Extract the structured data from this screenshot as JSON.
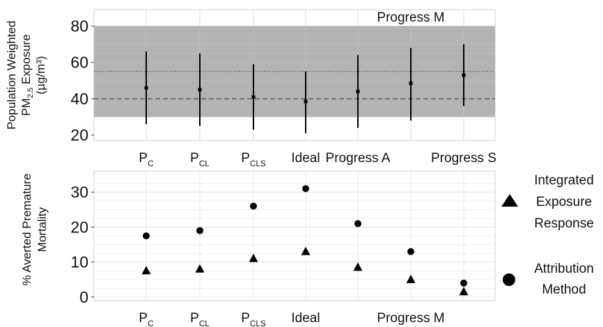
{
  "chart_data": [
    {
      "type": "scatter",
      "ylabel_lines": [
        "Population Weighted",
        "PM",
        "2.5",
        " Exposure",
        "(µg/m³)"
      ],
      "ylim": [
        17,
        89
      ],
      "yticks": [
        20,
        40,
        60,
        80
      ],
      "band": [
        30,
        80
      ],
      "ref_lines": [
        {
          "y": 40,
          "style": "dashed"
        },
        {
          "y": 55,
          "style": "dotted"
        }
      ],
      "categories": [
        {
          "main": "P",
          "sub": "C"
        },
        {
          "main": "P",
          "sub": "CL"
        },
        {
          "main": "P",
          "sub": "CLS"
        },
        {
          "main": "Ideal",
          "sub": ""
        },
        {
          "main": "Progress A",
          "sub": ""
        },
        {
          "main": "Progress M",
          "sub": ""
        },
        {
          "main": "Progress S",
          "sub": ""
        }
      ],
      "points": [
        {
          "mean": 46,
          "low": 26,
          "high": 66
        },
        {
          "mean": 45,
          "low": 25,
          "high": 65
        },
        {
          "mean": 41,
          "low": 23,
          "high": 59
        },
        {
          "mean": 38.5,
          "low": 21,
          "high": 55
        },
        {
          "mean": 44,
          "low": 24,
          "high": 64
        },
        {
          "mean": 48.5,
          "low": 28,
          "high": 68
        },
        {
          "mean": 53,
          "low": 36,
          "high": 70
        }
      ]
    },
    {
      "type": "scatter",
      "ylabel_lines": [
        "% Averted Premature",
        "Mortality"
      ],
      "ylim": [
        -1,
        36
      ],
      "yticks": [
        0,
        10,
        20,
        30
      ],
      "categories": [
        {
          "main": "P",
          "sub": "C"
        },
        {
          "main": "P",
          "sub": "CL"
        },
        {
          "main": "P",
          "sub": "CLS"
        },
        {
          "main": "Ideal",
          "sub": ""
        },
        {
          "main": "",
          "sub": ""
        },
        {
          "main": "Progress M",
          "sub": ""
        },
        {
          "main": "",
          "sub": ""
        }
      ],
      "series": [
        {
          "name_lines": [
            "Integrated",
            "Exposure",
            "Response"
          ],
          "marker": "triangle",
          "values": [
            7.5,
            8,
            11,
            13,
            8.5,
            5,
            1.5
          ]
        },
        {
          "name_lines": [
            "Attribution",
            "Method"
          ],
          "marker": "circle",
          "values": [
            17.5,
            19,
            26,
            31,
            21,
            13,
            4
          ]
        }
      ]
    }
  ]
}
